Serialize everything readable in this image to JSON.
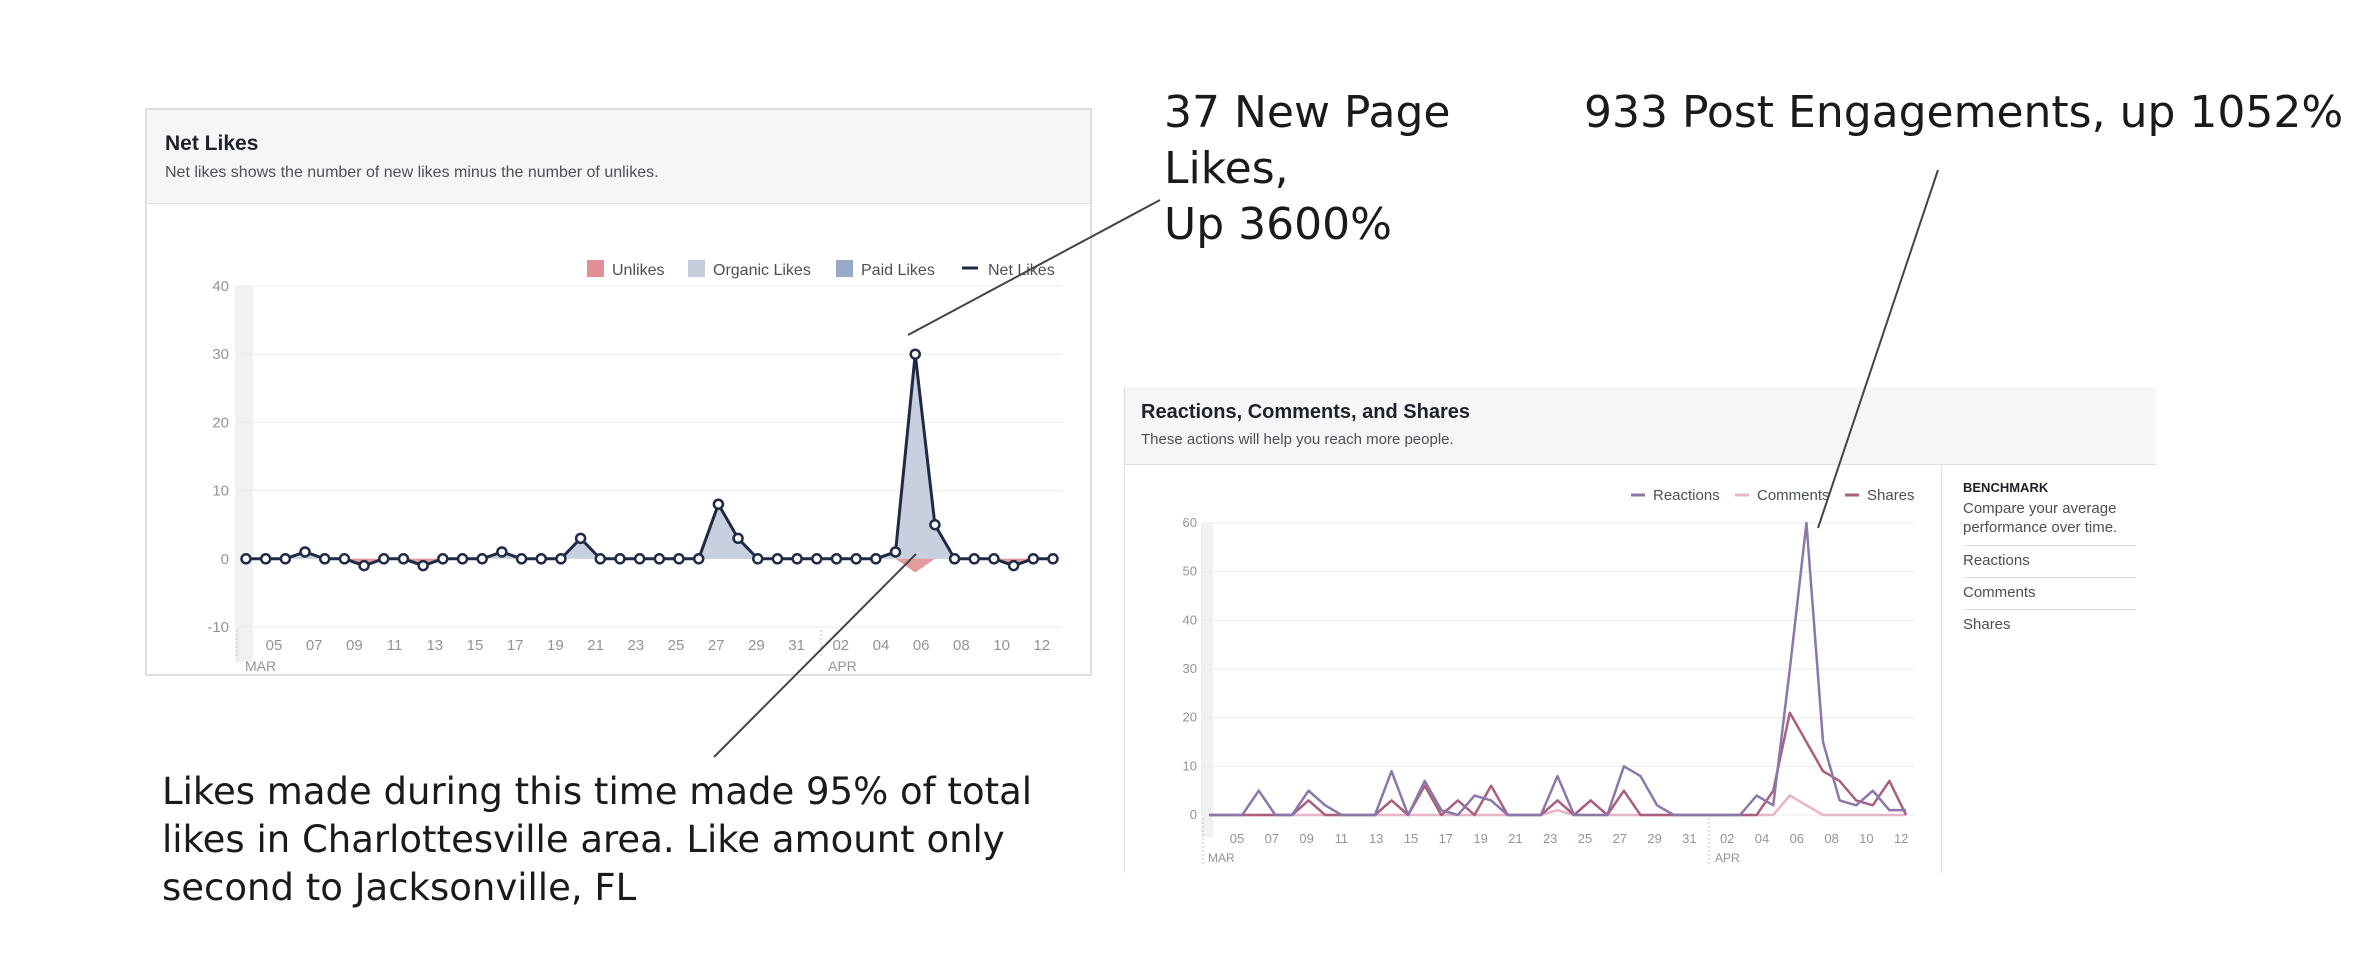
{
  "annotations": {
    "new_likes": [
      "37 New Page",
      "Likes,",
      "Up 3600%"
    ],
    "engagements": "933 Post Engagements, up 1052%",
    "share": [
      "Likes made during this time made 95% of total",
      "likes in Charlottesville area. Like amount only",
      "second to Jacksonville, FL"
    ]
  },
  "net_likes_panel": {
    "title": "Net Likes",
    "subtitle": "Net likes shows the number of new likes minus the number of unlikes."
  },
  "reactions_panel": {
    "title": "Reactions, Comments, and Shares",
    "subtitle": "These actions will help you reach more people.",
    "benchmark": {
      "title": "BENCHMARK",
      "description": "Compare your average performance over time.",
      "items": [
        "Reactions",
        "Comments",
        "Shares"
      ]
    }
  },
  "chart_data": [
    {
      "type": "area",
      "title": "Net Likes",
      "ylim": [
        -10,
        40
      ],
      "yticks": [
        -10,
        0,
        10,
        20,
        30,
        40
      ],
      "x_tick_labels": [
        "05",
        "07",
        "09",
        "11",
        "13",
        "15",
        "17",
        "19",
        "21",
        "23",
        "25",
        "27",
        "29",
        "31",
        "02",
        "04",
        "06",
        "08",
        "10",
        "12"
      ],
      "month_labels": [
        "MAR",
        "APR"
      ],
      "legend": [
        "Unlikes",
        "Organic Likes",
        "Paid Likes",
        "Net Likes"
      ],
      "legend_placement": "top-right",
      "grid": true,
      "colors": {
        "unlikes": "#e09094",
        "organic": "#c5cedd",
        "paid": "#9aa9c9",
        "net": "#1f2a44"
      },
      "series": [
        {
          "name": "Net Likes",
          "values": [
            0,
            0,
            0,
            1,
            0,
            0,
            -1,
            0,
            0,
            -1,
            0,
            0,
            0,
            1,
            0,
            0,
            0,
            3,
            0,
            0,
            0,
            0,
            0,
            0,
            8,
            3,
            0,
            0,
            0,
            0,
            0,
            0,
            0,
            1,
            30,
            5,
            0,
            0,
            0,
            -1,
            0,
            0
          ]
        },
        {
          "name": "Unlikes",
          "values": [
            0,
            0,
            0,
            0,
            0,
            0,
            -1,
            0,
            0,
            -1,
            0,
            0,
            0,
            0,
            0,
            0,
            0,
            0,
            0,
            0,
            0,
            0,
            0,
            0,
            0,
            0,
            0,
            0,
            0,
            0,
            0,
            0,
            0,
            0,
            -2,
            0,
            0,
            0,
            0,
            -1,
            0,
            0
          ]
        }
      ]
    },
    {
      "type": "line",
      "title": "Reactions, Comments, and Shares",
      "ylim": [
        0,
        60
      ],
      "yticks": [
        0,
        10,
        20,
        30,
        40,
        50,
        60
      ],
      "x_tick_labels": [
        "05",
        "07",
        "09",
        "11",
        "13",
        "15",
        "17",
        "19",
        "21",
        "23",
        "25",
        "27",
        "29",
        "31",
        "02",
        "04",
        "06",
        "08",
        "10",
        "12"
      ],
      "month_labels": [
        "MAR",
        "APR"
      ],
      "legend": [
        "Reactions",
        "Comments",
        "Shares"
      ],
      "legend_placement": "top-right",
      "grid": true,
      "colors": {
        "reactions": "#8b78a8",
        "comments": "#e8b4c8",
        "shares": "#a8607e"
      },
      "series": [
        {
          "name": "Reactions",
          "values": [
            0,
            0,
            0,
            5,
            0,
            0,
            5,
            2,
            0,
            0,
            0,
            9,
            0,
            7,
            1,
            0,
            4,
            3,
            0,
            0,
            0,
            8,
            0,
            0,
            0,
            10,
            8,
            2,
            0,
            0,
            0,
            0,
            0,
            4,
            2,
            30,
            60,
            15,
            3,
            2,
            5,
            1,
            1
          ]
        },
        {
          "name": "Comments",
          "values": [
            0,
            0,
            0,
            0,
            0,
            0,
            0,
            0,
            0,
            0,
            0,
            0,
            0,
            0,
            0,
            0,
            0,
            0,
            0,
            0,
            0,
            1,
            0,
            0,
            0,
            0,
            0,
            0,
            0,
            0,
            0,
            0,
            0,
            0,
            0,
            4,
            2,
            0,
            0,
            0,
            0,
            0,
            0
          ]
        },
        {
          "name": "Shares",
          "values": [
            0,
            0,
            0,
            0,
            0,
            0,
            3,
            0,
            0,
            0,
            0,
            3,
            0,
            6,
            0,
            3,
            0,
            6,
            0,
            0,
            0,
            3,
            0,
            3,
            0,
            5,
            0,
            0,
            0,
            0,
            0,
            0,
            0,
            0,
            5,
            21,
            15,
            9,
            7,
            3,
            2,
            7,
            0
          ]
        }
      ]
    }
  ]
}
